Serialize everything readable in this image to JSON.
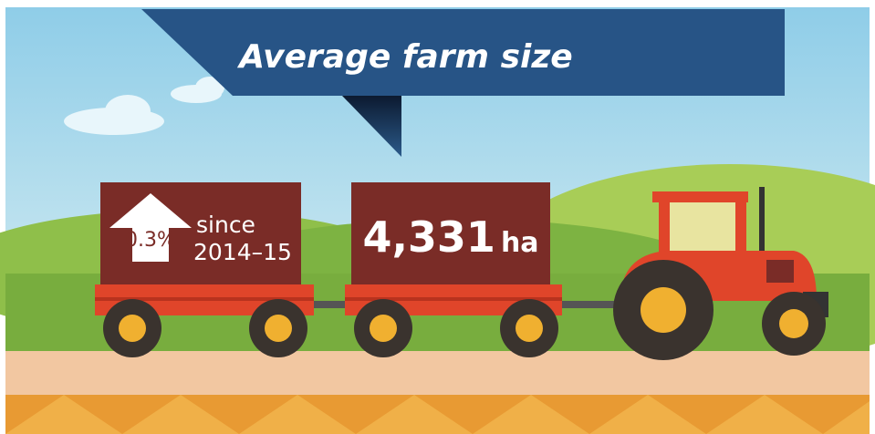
{
  "title": "Average farm size",
  "change": {
    "value": "0.3%",
    "lines": [
      "since",
      "2014–15"
    ]
  },
  "stat": {
    "value": "4,331",
    "unit": "ha"
  }
}
